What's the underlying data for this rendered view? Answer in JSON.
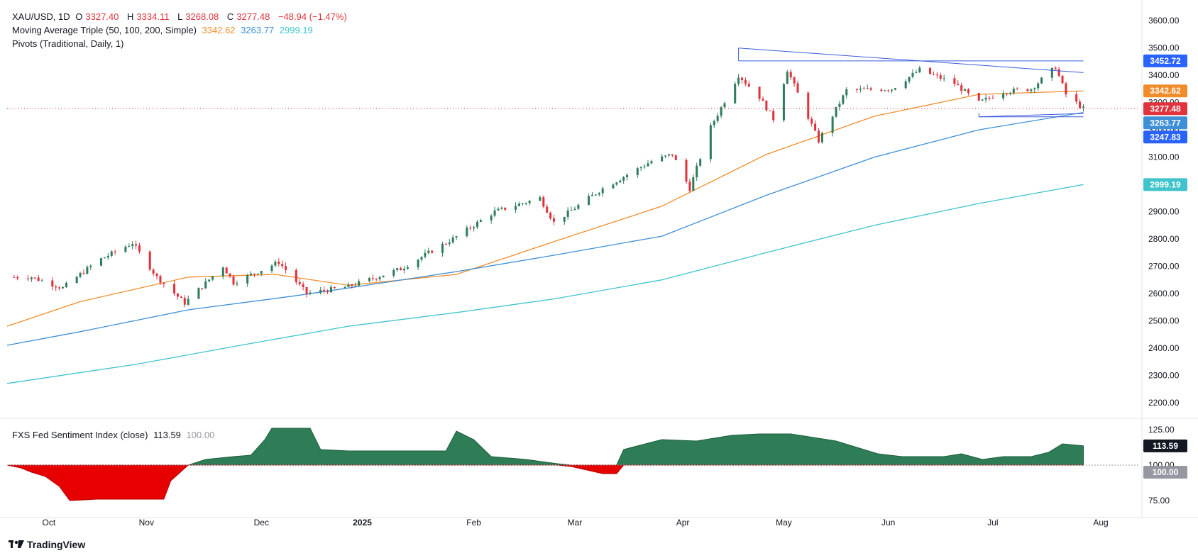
{
  "header": {
    "symbol": "XAU/USD, 1D",
    "open_label": "O",
    "open": "3327.40",
    "high_label": "H",
    "high": "3334.11",
    "low_label": "L",
    "low": "3268.08",
    "close_label": "C",
    "close": "3277.48",
    "change": "−48.94 (−1.47%)",
    "ma_title": "Moving Average Triple (50, 100, 200, Simple)",
    "ma50_value": "3342.62",
    "ma100_value": "3263.77",
    "ma200_value": "2999.19",
    "pivots_title": "Pivots (Traditional, Daily, 1)"
  },
  "indicator": {
    "title": "FXS Fed Sentiment Index (close)",
    "value": "113.59",
    "baseline": "100.00"
  },
  "footer": {
    "brand": "TradingView"
  },
  "colors": {
    "up": "#2e7d5b",
    "down": "#e0333d",
    "ma50": "#f08c2a",
    "ma100": "#3d8fd6",
    "ma200": "#3fc4cc",
    "trend": "#3b5bdb",
    "above": "#2e7d57",
    "below": "#e60000"
  },
  "chart_data": {
    "type": "candlestick",
    "price_axis": {
      "ticks": [
        "3600.00",
        "3500.00",
        "3400.00",
        "3300.00",
        "3200.00",
        "3100.00",
        "3000.00",
        "2900.00",
        "2800.00",
        "2700.00",
        "2600.00",
        "2500.00",
        "2400.00",
        "2300.00",
        "2200.00"
      ],
      "range": [
        2150,
        3650
      ]
    },
    "price_labels": [
      {
        "value": "3452.72",
        "color": "#2962ff"
      },
      {
        "value": "3342.62",
        "color": "#f08c2a"
      },
      {
        "value": "3277.48",
        "color": "#e0333d"
      },
      {
        "value": "3263.77",
        "color": "#3d8fd6"
      },
      {
        "value": "3247.83",
        "color": "#2962ff"
      },
      {
        "value": "2999.19",
        "color": "#3fc4cc"
      }
    ],
    "time_axis": [
      "Oct",
      "Nov",
      "Dec",
      "2025",
      "Feb",
      "Mar",
      "Apr",
      "May",
      "Jun",
      "Jul",
      "Aug"
    ],
    "ohlc_anchors": [
      [
        "2024-09-25",
        2660
      ],
      [
        "2024-10-01",
        2660
      ],
      [
        "2024-10-10",
        2620
      ],
      [
        "2024-10-20",
        2720
      ],
      [
        "2024-10-30",
        2785
      ],
      [
        "2024-11-06",
        2660
      ],
      [
        "2024-11-14",
        2565
      ],
      [
        "2024-11-25",
        2700
      ],
      [
        "2024-11-28",
        2640
      ],
      [
        "2024-12-11",
        2715
      ],
      [
        "2024-12-19",
        2600
      ],
      [
        "2024-12-31",
        2625
      ],
      [
        "2025-01-15",
        2690
      ],
      [
        "2025-01-30",
        2800
      ],
      [
        "2025-02-11",
        2900
      ],
      [
        "2025-02-24",
        2950
      ],
      [
        "2025-02-28",
        2860
      ],
      [
        "2025-03-14",
        2985
      ],
      [
        "2025-03-28",
        3085
      ],
      [
        "2025-04-03",
        3110
      ],
      [
        "2025-04-08",
        2985
      ],
      [
        "2025-04-14",
        3210
      ],
      [
        "2025-04-22",
        3400
      ],
      [
        "2025-04-28",
        3320
      ],
      [
        "2025-05-02",
        3240
      ],
      [
        "2025-05-06",
        3420
      ],
      [
        "2025-05-15",
        3160
      ],
      [
        "2025-05-23",
        3345
      ],
      [
        "2025-06-05",
        3350
      ],
      [
        "2025-06-13",
        3420
      ],
      [
        "2025-06-23",
        3370
      ],
      [
        "2025-06-30",
        3300
      ],
      [
        "2025-07-07",
        3340
      ],
      [
        "2025-07-15",
        3350
      ],
      [
        "2025-07-22",
        3430
      ],
      [
        "2025-07-25",
        3330
      ],
      [
        "2025-07-30",
        3277
      ]
    ],
    "series": [
      {
        "name": "MA 50",
        "points": [
          [
            "2024-09-24",
            2480
          ],
          [
            "2024-10-15",
            2570
          ],
          [
            "2024-11-15",
            2660
          ],
          [
            "2024-12-10",
            2670
          ],
          [
            "2024-12-31",
            2630
          ],
          [
            "2025-01-31",
            2670
          ],
          [
            "2025-02-28",
            2790
          ],
          [
            "2025-03-31",
            2920
          ],
          [
            "2025-04-30",
            3110
          ],
          [
            "2025-05-31",
            3250
          ],
          [
            "2025-06-30",
            3330
          ],
          [
            "2025-07-30",
            3342.62
          ]
        ]
      },
      {
        "name": "MA 100",
        "points": [
          [
            "2024-09-24",
            2410
          ],
          [
            "2024-10-15",
            2460
          ],
          [
            "2024-11-15",
            2540
          ],
          [
            "2024-12-15",
            2590
          ],
          [
            "2024-12-31",
            2620
          ],
          [
            "2025-01-31",
            2680
          ],
          [
            "2025-02-28",
            2740
          ],
          [
            "2025-03-31",
            2810
          ],
          [
            "2025-04-30",
            2960
          ],
          [
            "2025-05-31",
            3100
          ],
          [
            "2025-06-30",
            3200
          ],
          [
            "2025-07-30",
            3263.77
          ]
        ]
      },
      {
        "name": "MA 200",
        "points": [
          [
            "2024-09-24",
            2270
          ],
          [
            "2024-10-31",
            2340
          ],
          [
            "2024-11-30",
            2410
          ],
          [
            "2024-12-31",
            2480
          ],
          [
            "2025-01-31",
            2530
          ],
          [
            "2025-02-28",
            2580
          ],
          [
            "2025-03-31",
            2650
          ],
          [
            "2025-04-30",
            2750
          ],
          [
            "2025-05-31",
            2850
          ],
          [
            "2025-06-30",
            2930
          ],
          [
            "2025-07-30",
            2999.19
          ]
        ]
      }
    ],
    "trendlines": [
      {
        "from": [
          "2025-04-22",
          3500
        ],
        "to": [
          "2025-07-30",
          3410
        ]
      },
      {
        "from": [
          "2025-06-30",
          3247.83
        ],
        "to": [
          "2025-07-30",
          3260
        ]
      }
    ],
    "hlines": [
      {
        "from": "2025-04-22",
        "to": "2025-07-30",
        "value": 3452.72
      },
      {
        "from": "2025-06-30",
        "to": "2025-07-30",
        "value": 3247.83
      }
    ],
    "sentiment": {
      "ticks": [
        "125.00",
        "100.00",
        "75.00"
      ],
      "range": [
        63,
        133
      ],
      "points": [
        [
          "2024-09-24",
          100
        ],
        [
          "2024-09-28",
          98
        ],
        [
          "2024-10-01",
          95
        ],
        [
          "2024-10-05",
          92
        ],
        [
          "2024-10-09",
          85
        ],
        [
          "2024-10-12",
          75
        ],
        [
          "2024-10-20",
          76
        ],
        [
          "2024-10-28",
          76
        ],
        [
          "2024-11-08",
          76
        ],
        [
          "2024-11-10",
          89
        ],
        [
          "2024-11-15",
          100
        ],
        [
          "2024-11-20",
          104
        ],
        [
          "2024-11-28",
          106
        ],
        [
          "2024-12-03",
          107
        ],
        [
          "2024-12-07",
          118
        ],
        [
          "2024-12-09",
          126
        ],
        [
          "2024-12-20",
          126
        ],
        [
          "2024-12-23",
          111
        ],
        [
          "2024-12-31",
          110
        ],
        [
          "2025-01-15",
          110
        ],
        [
          "2025-01-28",
          110
        ],
        [
          "2025-01-31",
          124
        ],
        [
          "2025-02-05",
          118
        ],
        [
          "2025-02-10",
          106
        ],
        [
          "2025-02-20",
          104
        ],
        [
          "2025-03-01",
          101
        ],
        [
          "2025-03-05",
          99
        ],
        [
          "2025-03-14",
          94
        ],
        [
          "2025-03-18",
          94
        ],
        [
          "2025-03-20",
          111
        ],
        [
          "2025-03-31",
          118
        ],
        [
          "2025-04-10",
          117
        ],
        [
          "2025-04-20",
          121
        ],
        [
          "2025-04-28",
          122
        ],
        [
          "2025-05-07",
          122
        ],
        [
          "2025-05-20",
          117
        ],
        [
          "2025-06-01",
          108
        ],
        [
          "2025-06-08",
          106
        ],
        [
          "2025-06-20",
          106
        ],
        [
          "2025-06-25",
          108
        ],
        [
          "2025-07-01",
          104
        ],
        [
          "2025-07-07",
          106
        ],
        [
          "2025-07-15",
          106
        ],
        [
          "2025-07-20",
          109
        ],
        [
          "2025-07-24",
          115
        ],
        [
          "2025-07-30",
          113.59
        ]
      ]
    }
  }
}
